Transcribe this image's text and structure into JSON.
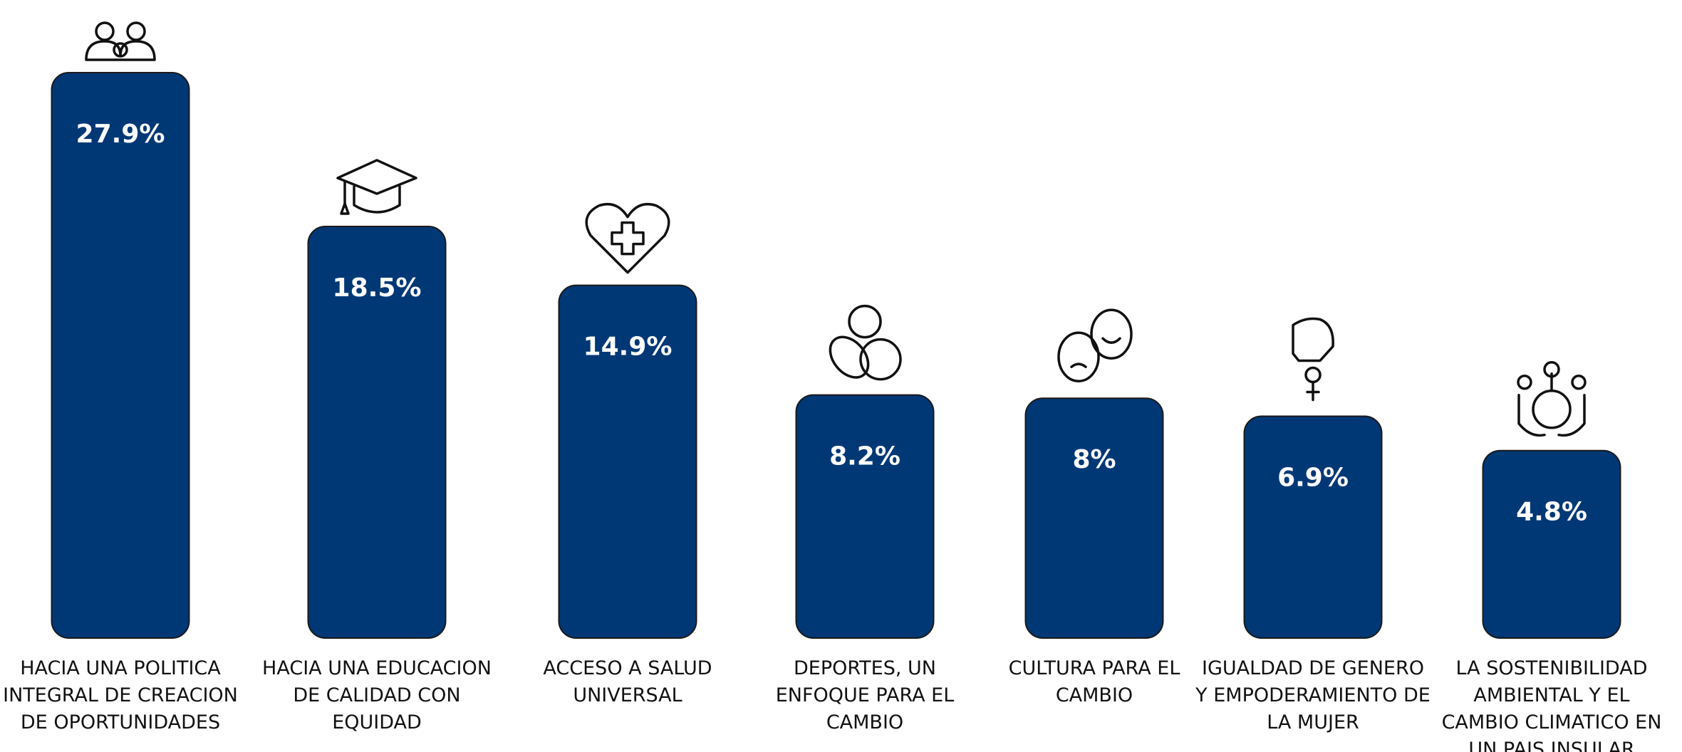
{
  "chart_data": {
    "type": "bar",
    "categories": [
      "HACIA UNA POLITICA INTEGRAL DE CREACION DE OPORTUNIDADES",
      "HACIA UNA EDUCACION DE CALIDAD CON EQUIDAD",
      "ACCESO A SALUD UNIVERSAL",
      "DEPORTES, UN ENFOQUE PARA EL CAMBIO",
      "CULTURA PARA EL CAMBIO",
      "IGUALDAD DE GENERO Y EMPODERAMIENTO DE LA MUJER",
      "LA SOSTENIBILIDAD AMBIENTAL Y EL CAMBIO CLIMATICO EN UN PAIS INSULAR"
    ],
    "values": [
      27.9,
      18.5,
      14.9,
      8.2,
      8,
      6.9,
      4.8
    ],
    "value_labels": [
      "27.9%",
      "18.5%",
      "14.9%",
      "8.2%",
      "8%",
      "6.9%",
      "4.8%"
    ],
    "color": "#003876"
  }
}
